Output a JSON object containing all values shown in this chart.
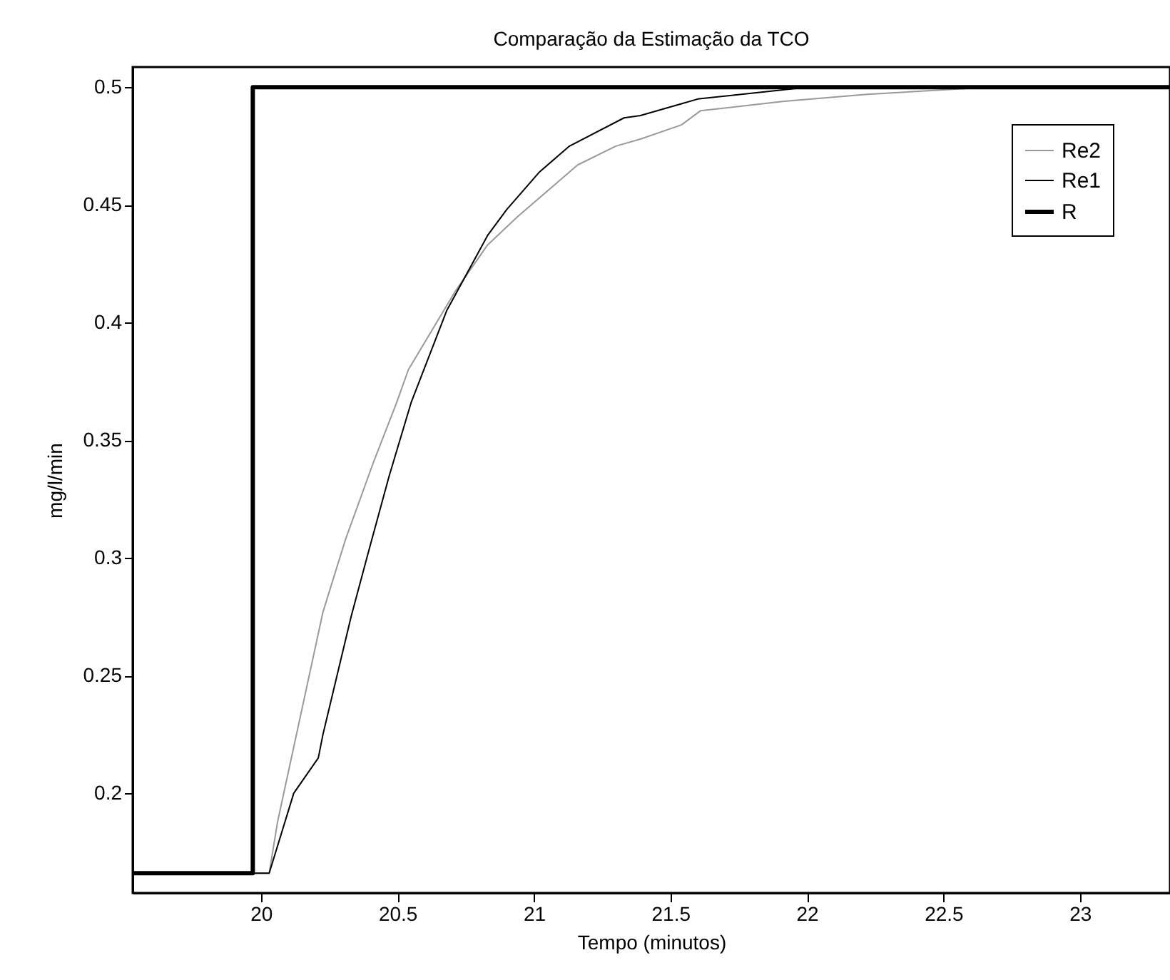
{
  "chart_data": {
    "type": "line",
    "title": "Comparação da Estimação da TCO",
    "xlabel": "Tempo (minutos)",
    "ylabel": "mg/l/min",
    "xlim": [
      19.53,
      23.33
    ],
    "ylim": [
      0.1576,
      0.5086
    ],
    "xticks": [
      20,
      20.5,
      21,
      21.5,
      22,
      22.5,
      23
    ],
    "yticks": [
      0.2,
      0.25,
      0.3,
      0.35,
      0.4,
      0.45,
      0.5
    ],
    "legend": "top right",
    "grid": false,
    "series": [
      {
        "name": "Re2",
        "color": "#999999",
        "x": [
          19.53,
          20.03,
          20.061,
          20.227,
          20.31,
          20.41,
          20.497,
          20.54,
          20.71,
          20.83,
          20.94,
          21.16,
          21.3,
          21.39,
          21.54,
          21.61,
          21.91,
          22.22,
          22.59,
          23.33
        ],
        "values": [
          0.166,
          0.166,
          0.188,
          0.277,
          0.308,
          0.34,
          0.366,
          0.38,
          0.413,
          0.433,
          0.445,
          0.467,
          0.475,
          0.478,
          0.484,
          0.49,
          0.494,
          0.497,
          0.4995,
          0.5
        ]
      },
      {
        "name": "Re1",
        "color": "#000000",
        "x": [
          19.53,
          20.03,
          20.12,
          20.21,
          20.227,
          20.33,
          20.39,
          20.47,
          20.55,
          20.68,
          20.83,
          20.9,
          21.02,
          21.13,
          21.33,
          21.39,
          21.54,
          21.6,
          21.96,
          23.33
        ],
        "values": [
          0.166,
          0.166,
          0.2,
          0.215,
          0.225,
          0.275,
          0.301,
          0.335,
          0.366,
          0.405,
          0.437,
          0.448,
          0.464,
          0.475,
          0.487,
          0.488,
          0.493,
          0.495,
          0.4995,
          0.5
        ]
      },
      {
        "name": "R",
        "color": "#000000",
        "x": [
          19.53,
          19.97,
          19.97,
          23.33
        ],
        "values": [
          0.166,
          0.166,
          0.5,
          0.5
        ]
      }
    ]
  }
}
